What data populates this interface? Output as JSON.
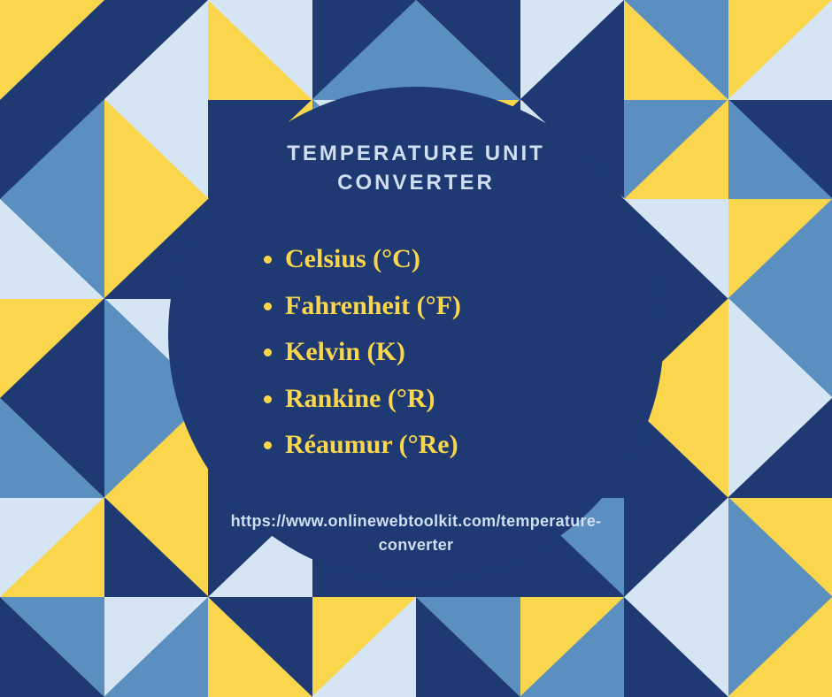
{
  "palette": {
    "navy": "#1f3a72",
    "blue": "#5b8fbf",
    "lightblue": "#d6e5f3",
    "yellow": "#f9d64c",
    "title_color": "#cfdef0",
    "divider_color": "#cfdef0",
    "list_color": "#f9d64c",
    "url_color": "#cfdef0"
  },
  "circle": {
    "bg": "#1f3a72",
    "title": "TEMPERATURE UNIT CONVERTER",
    "items": [
      "Celsius (°C)",
      "Fahrenheit (°F)",
      "Kelvin (K)",
      "Rankine (°R)",
      "Réaumur (°Re)"
    ],
    "url": "https://www.onlinewebtoolkit.com/temperature-converter"
  },
  "background": {
    "cols": 8,
    "rows": 7,
    "cells": [
      [
        [
          "tl",
          "yellow"
        ],
        [
          "br",
          "navy"
        ]
      ],
      [
        [
          "tl",
          "navy"
        ],
        [
          "br",
          "lightblue"
        ]
      ],
      [
        [
          "tr",
          "lightblue"
        ],
        [
          "bl",
          "yellow"
        ]
      ],
      [
        [
          "tl",
          "navy"
        ],
        [
          "br",
          "blue"
        ]
      ],
      [
        [
          "tr",
          "navy"
        ],
        [
          "bl",
          "blue"
        ]
      ],
      [
        [
          "tl",
          "lightblue"
        ],
        [
          "br",
          "navy"
        ]
      ],
      [
        [
          "tr",
          "blue"
        ],
        [
          "bl",
          "yellow"
        ]
      ],
      [
        [
          "tl",
          "yellow"
        ],
        [
          "br",
          "lightblue"
        ]
      ],
      [
        [
          "tl",
          "navy"
        ],
        [
          "br",
          "blue"
        ]
      ],
      [
        [
          "tr",
          "lightblue"
        ],
        [
          "bl",
          "yellow"
        ]
      ],
      [
        [
          "tl",
          "navy"
        ],
        [
          "br",
          "yellow"
        ]
      ],
      [
        [
          "tr",
          "lightblue"
        ],
        [
          "bl",
          "blue"
        ]
      ],
      [
        [
          "tl",
          "yellow"
        ],
        [
          "br",
          "navy"
        ]
      ],
      [
        [
          "tr",
          "navy"
        ],
        [
          "bl",
          "lightblue"
        ]
      ],
      [
        [
          "tl",
          "blue"
        ],
        [
          "br",
          "yellow"
        ]
      ],
      [
        [
          "tr",
          "navy"
        ],
        [
          "bl",
          "blue"
        ]
      ],
      [
        [
          "tr",
          "blue"
        ],
        [
          "bl",
          "lightblue"
        ]
      ],
      [
        [
          "tl",
          "yellow"
        ],
        [
          "br",
          "navy"
        ]
      ],
      [
        [
          "tr",
          "navy"
        ],
        [
          "bl",
          "navy"
        ]
      ],
      [
        [
          "tl",
          "navy"
        ],
        [
          "br",
          "navy"
        ]
      ],
      [
        [
          "tr",
          "navy"
        ],
        [
          "bl",
          "navy"
        ]
      ],
      [
        [
          "tl",
          "navy"
        ],
        [
          "br",
          "navy"
        ]
      ],
      [
        [
          "tr",
          "lightblue"
        ],
        [
          "bl",
          "navy"
        ]
      ],
      [
        [
          "tl",
          "yellow"
        ],
        [
          "br",
          "blue"
        ]
      ],
      [
        [
          "tl",
          "yellow"
        ],
        [
          "br",
          "navy"
        ]
      ],
      [
        [
          "tr",
          "lightblue"
        ],
        [
          "bl",
          "blue"
        ]
      ],
      [
        [
          "tl",
          "navy"
        ],
        [
          "br",
          "navy"
        ]
      ],
      [
        [
          "tr",
          "navy"
        ],
        [
          "bl",
          "navy"
        ]
      ],
      [
        [
          "tl",
          "navy"
        ],
        [
          "br",
          "navy"
        ]
      ],
      [
        [
          "tr",
          "navy"
        ],
        [
          "bl",
          "navy"
        ]
      ],
      [
        [
          "tl",
          "navy"
        ],
        [
          "br",
          "yellow"
        ]
      ],
      [
        [
          "tr",
          "blue"
        ],
        [
          "bl",
          "lightblue"
        ]
      ],
      [
        [
          "tr",
          "navy"
        ],
        [
          "bl",
          "blue"
        ]
      ],
      [
        [
          "tl",
          "blue"
        ],
        [
          "br",
          "yellow"
        ]
      ],
      [
        [
          "tr",
          "navy"
        ],
        [
          "bl",
          "navy"
        ]
      ],
      [
        [
          "tl",
          "navy"
        ],
        [
          "br",
          "navy"
        ]
      ],
      [
        [
          "tr",
          "navy"
        ],
        [
          "bl",
          "navy"
        ]
      ],
      [
        [
          "tl",
          "navy"
        ],
        [
          "br",
          "navy"
        ]
      ],
      [
        [
          "tr",
          "yellow"
        ],
        [
          "bl",
          "navy"
        ]
      ],
      [
        [
          "tl",
          "lightblue"
        ],
        [
          "br",
          "navy"
        ]
      ],
      [
        [
          "tl",
          "lightblue"
        ],
        [
          "br",
          "yellow"
        ]
      ],
      [
        [
          "tr",
          "yellow"
        ],
        [
          "bl",
          "navy"
        ]
      ],
      [
        [
          "tl",
          "navy"
        ],
        [
          "br",
          "lightblue"
        ]
      ],
      [
        [
          "tr",
          "navy"
        ],
        [
          "bl",
          "navy"
        ]
      ],
      [
        [
          "tl",
          "navy"
        ],
        [
          "br",
          "navy"
        ]
      ],
      [
        [
          "tr",
          "blue"
        ],
        [
          "bl",
          "navy"
        ]
      ],
      [
        [
          "tl",
          "navy"
        ],
        [
          "br",
          "lightblue"
        ]
      ],
      [
        [
          "tr",
          "yellow"
        ],
        [
          "bl",
          "blue"
        ]
      ],
      [
        [
          "tr",
          "blue"
        ],
        [
          "bl",
          "navy"
        ]
      ],
      [
        [
          "tl",
          "lightblue"
        ],
        [
          "br",
          "blue"
        ]
      ],
      [
        [
          "tr",
          "navy"
        ],
        [
          "bl",
          "yellow"
        ]
      ],
      [
        [
          "tl",
          "yellow"
        ],
        [
          "br",
          "lightblue"
        ]
      ],
      [
        [
          "tr",
          "blue"
        ],
        [
          "bl",
          "navy"
        ]
      ],
      [
        [
          "tl",
          "yellow"
        ],
        [
          "br",
          "blue"
        ]
      ],
      [
        [
          "tr",
          "lightblue"
        ],
        [
          "bl",
          "navy"
        ]
      ],
      [
        [
          "tl",
          "blue"
        ],
        [
          "br",
          "yellow"
        ]
      ]
    ]
  }
}
